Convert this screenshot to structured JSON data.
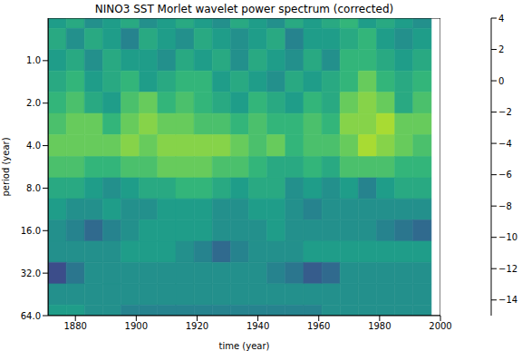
{
  "chart_data": {
    "type": "heatmap",
    "title": "NINO3 SST Morlet wavelet power spectrum (corrected)",
    "x_label": "time (year)",
    "y_label": "period (year)",
    "x": [
      1874,
      1880,
      1886,
      1892,
      1898,
      1904,
      1910,
      1916,
      1922,
      1928,
      1934,
      1940,
      1946,
      1952,
      1958,
      1964,
      1970,
      1976,
      1982,
      1988,
      1994
    ],
    "y": [
      0.5,
      0.7,
      1,
      1.4,
      2,
      2.8,
      4,
      5.7,
      8,
      11.3,
      16,
      22.6,
      32,
      45.3,
      64
    ],
    "cells": [
      [
        -5,
        -4,
        -6,
        -5,
        -4,
        -6,
        -5,
        -4,
        -5,
        -6,
        -4,
        -5,
        -6,
        -4,
        -5,
        -4,
        -3,
        -5,
        -4,
        -5,
        -6
      ],
      [
        -4,
        -6,
        -4,
        -5,
        -7,
        -4,
        -5,
        -6,
        -4,
        -5,
        -6,
        -5,
        -4,
        -7,
        -5,
        -5,
        -4,
        -3,
        -5,
        -6,
        -5
      ],
      [
        -5,
        -4,
        -6,
        -4,
        -5,
        -5,
        -6,
        -4,
        -5,
        -4,
        -6,
        -4,
        -5,
        -6,
        -4,
        -6,
        -3,
        -3,
        -4,
        -5,
        -4
      ],
      [
        -4,
        -3,
        -5,
        -4,
        -3,
        -5,
        -4,
        -3,
        -3,
        -5,
        -4,
        -5,
        -6,
        -4,
        -5,
        -4,
        -3,
        -1,
        -3,
        -4,
        -3
      ],
      [
        -3,
        -2,
        -4,
        -5,
        -2,
        -1,
        -3,
        -2,
        -3,
        -4,
        -5,
        -3,
        -4,
        -5,
        -3,
        -4,
        -1,
        0,
        -1,
        -4,
        -2
      ],
      [
        -2,
        -1,
        -1,
        -3,
        -1,
        0,
        -1,
        -1,
        -2,
        -2,
        -3,
        -2,
        -3,
        -3,
        -2,
        -3,
        0,
        0,
        1,
        -1,
        -1
      ],
      [
        -1,
        -1,
        -1,
        -1,
        0,
        -1,
        0,
        0,
        0,
        0,
        -1,
        -2,
        -1,
        -3,
        -2,
        -2,
        -1,
        1,
        0,
        -1,
        -2
      ],
      [
        -2,
        -2,
        -3,
        -3,
        -2,
        -2,
        -1,
        -1,
        -1,
        -2,
        -2,
        -3,
        -4,
        -4,
        -3,
        -4,
        -2,
        -2,
        -2,
        -3,
        -3
      ],
      [
        -4,
        -4,
        -5,
        -6,
        -5,
        -4,
        -4,
        -3,
        -3,
        -4,
        -5,
        -4,
        -4,
        -6,
        -5,
        -6,
        -5,
        -7,
        -5,
        -4,
        -4
      ],
      [
        -5,
        -6,
        -6,
        -5,
        -6,
        -6,
        -5,
        -5,
        -5,
        -6,
        -6,
        -5,
        -5,
        -6,
        -7,
        -6,
        -6,
        -6,
        -6,
        -6,
        -6
      ],
      [
        -6,
        -7,
        -9,
        -7,
        -6,
        -5,
        -5,
        -5,
        -5,
        -6,
        -6,
        -6,
        -5,
        -6,
        -6,
        -6,
        -6,
        -6,
        -7,
        -8,
        -9
      ],
      [
        -6,
        -6,
        -6,
        -6,
        -5,
        -5,
        -5,
        -6,
        -7,
        -9,
        -7,
        -6,
        -6,
        -6,
        -5,
        -5,
        -5,
        -5,
        -5,
        -5,
        -5
      ],
      [
        -11,
        -8,
        -6,
        -6,
        -6,
        -6,
        -6,
        -6,
        -6,
        -6,
        -6,
        -6,
        -7,
        -8,
        -10,
        -9,
        -6,
        -6,
        -6,
        -6,
        -6
      ],
      [
        -6,
        -6,
        -6,
        -6,
        -6,
        -6,
        -6,
        -6,
        -6,
        -6,
        -6,
        -6,
        -6,
        -6,
        -6,
        -6,
        -6,
        -6,
        -6,
        -6,
        -6
      ],
      [
        -5,
        -5,
        -6,
        -6,
        -7,
        -7,
        -7,
        -7,
        -7,
        -7,
        -7,
        -7,
        -7,
        -7,
        -7,
        -6,
        -6,
        -6,
        -6,
        -6,
        -6
      ]
    ],
    "xlim": [
      1871,
      2000
    ],
    "xticks": [
      1880,
      1900,
      1920,
      1940,
      1960,
      1980,
      2000
    ],
    "ylim": [
      0.5,
      64
    ],
    "yticks": [
      {
        "value": 1,
        "label": "1.0"
      },
      {
        "value": 2,
        "label": "2.0"
      },
      {
        "value": 4,
        "label": "4.0"
      },
      {
        "value": 8,
        "label": "8.0"
      },
      {
        "value": 16,
        "label": "16.0"
      },
      {
        "value": 32,
        "label": "32.0"
      },
      {
        "value": 64,
        "label": "64.0"
      }
    ],
    "log": "y",
    "colorbar_range": [
      -15,
      4
    ],
    "colorbar_levels": [
      -15,
      -14,
      -13,
      -12,
      -11,
      -10,
      -9,
      -8,
      -7,
      -6,
      -5,
      -4,
      -3,
      -2,
      -1,
      0,
      1,
      2,
      3,
      4
    ],
    "colorbar_ticks": [
      {
        "value": -14,
        "label": "−14"
      },
      {
        "value": -12,
        "label": "−12"
      },
      {
        "value": -10,
        "label": "−10"
      },
      {
        "value": -8,
        "label": "−8"
      },
      {
        "value": -6,
        "label": "−6"
      },
      {
        "value": -4,
        "label": "−4"
      },
      {
        "value": -2,
        "label": "−2"
      },
      0,
      2,
      4
    ]
  }
}
